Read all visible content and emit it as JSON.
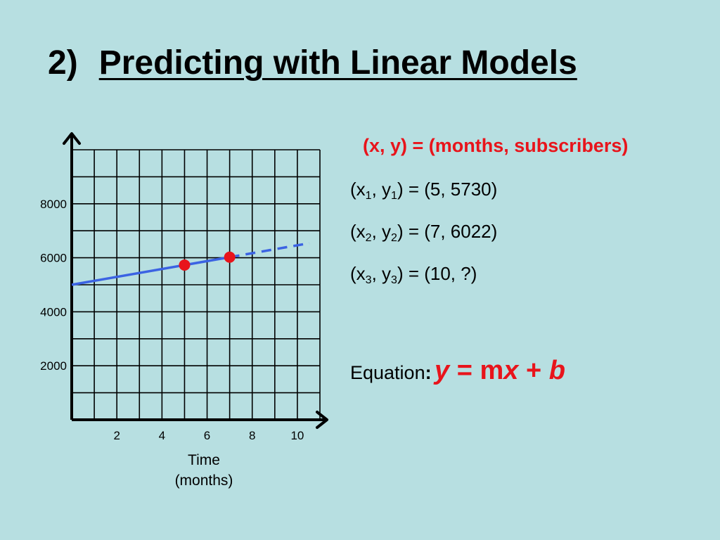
{
  "title": {
    "number": "2)",
    "text": "Predicting with Linear Models"
  },
  "legend": "(x, y) = (months, subscribers)",
  "points_text": [
    {
      "a": "(x",
      "s1": "1",
      "b": ", y",
      "s2": "1",
      "c": ") = (5, 5730)"
    },
    {
      "a": "(x",
      "s1": "2",
      "b": ", y",
      "s2": "2",
      "c": ") = (7, 6022)"
    },
    {
      "a": "(x",
      "s1": "3",
      "b": ", y",
      "s2": "3",
      "c": ") = (10, ?)"
    }
  ],
  "equation": {
    "label": "Equation",
    "colon": ":",
    "y": "y",
    "eq": " = ",
    "m": "m",
    "x": "x",
    "plus": " + ",
    "b": "b"
  },
  "chart_data": {
    "type": "scatter",
    "xlabel": "Time\n(months)",
    "ylabel": "",
    "xlim": [
      0,
      11
    ],
    "ylim": [
      0,
      10000
    ],
    "x_ticks": [
      2,
      4,
      6,
      8,
      10
    ],
    "y_ticks": [
      2000,
      4000,
      6000,
      8000
    ],
    "grid": true,
    "points": [
      {
        "x": 5,
        "y": 5730
      },
      {
        "x": 7,
        "y": 6022
      }
    ],
    "line": {
      "slope": 146,
      "intercept": 5000,
      "solid_range": [
        0,
        7
      ],
      "dashed_range": [
        7,
        11
      ],
      "color": "#3b63e3"
    },
    "point_color": "#e8141b"
  }
}
